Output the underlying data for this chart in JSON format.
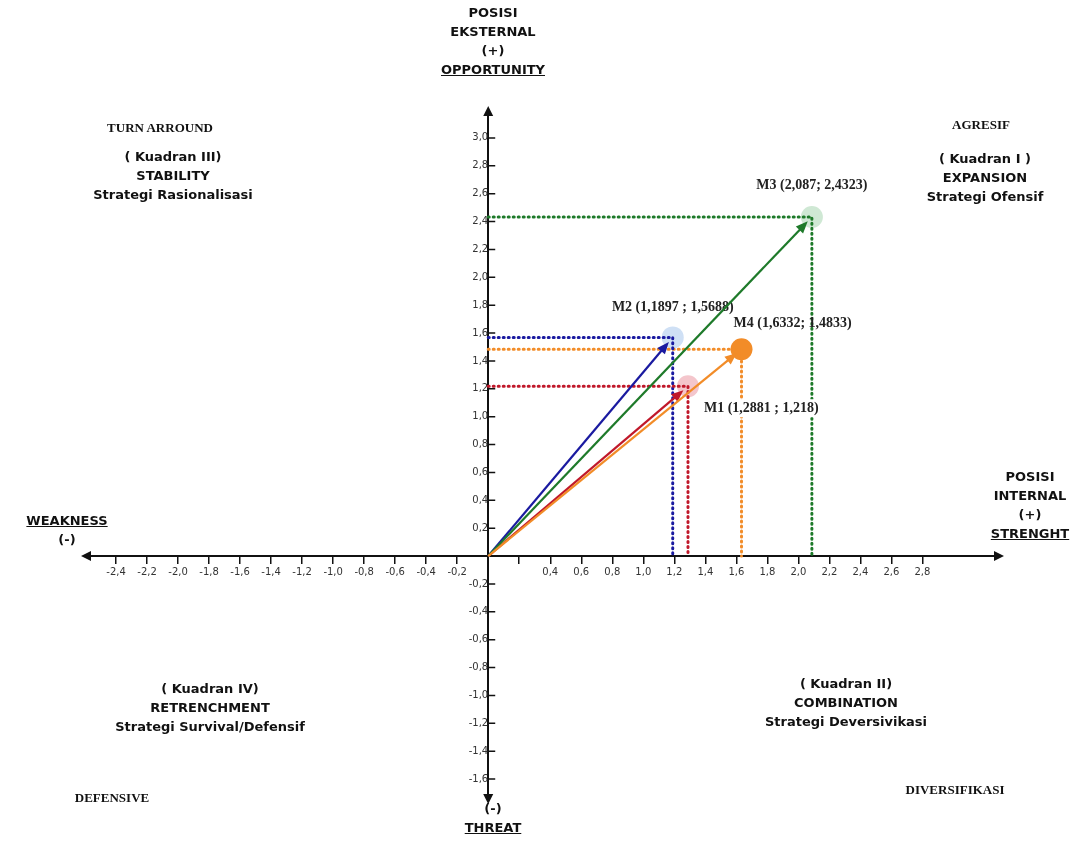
{
  "chart_data": {
    "type": "scatter",
    "xlabel": "POSISI\nINTERNAL\n(+)\nSTRENGHT",
    "ylabel": "POSISI\nEKSTERNAL\n(+)\nOPPORTUNITY",
    "xlim": [
      -2.6,
      3.3
    ],
    "ylim": [
      -1.75,
      3.2
    ],
    "xticks": [
      {
        "value": -2.4,
        "label": "-2,4"
      },
      {
        "value": -2.2,
        "label": "-2,2"
      },
      {
        "value": -2.0,
        "label": "-2,0"
      },
      {
        "value": -1.8,
        "label": "-1,8"
      },
      {
        "value": -1.6,
        "label": "-1,6"
      },
      {
        "value": -1.4,
        "label": "-1,4"
      },
      {
        "value": -1.2,
        "label": "-1,2"
      },
      {
        "value": -1.0,
        "label": "-1,0"
      },
      {
        "value": -0.8,
        "label": "-0,8"
      },
      {
        "value": -0.6,
        "label": "-0,6"
      },
      {
        "value": -0.4,
        "label": "-0,4"
      },
      {
        "value": -0.2,
        "label": "-0,2"
      },
      {
        "value": 0.2,
        "label": null
      },
      {
        "value": 0.4,
        "label": "0,4"
      },
      {
        "value": 0.6,
        "label": "0,6"
      },
      {
        "value": 0.8,
        "label": "0,8"
      },
      {
        "value": 1.0,
        "label": "1,0"
      },
      {
        "value": 1.2,
        "label": "1,2"
      },
      {
        "value": 1.4,
        "label": "1,4"
      },
      {
        "value": 1.6,
        "label": "1,6"
      },
      {
        "value": 1.8,
        "label": "1,8"
      },
      {
        "value": 2.0,
        "label": "2,0"
      },
      {
        "value": 2.2,
        "label": "2,2"
      },
      {
        "value": 2.4,
        "label": "2,4"
      },
      {
        "value": 2.6,
        "label": "2,6"
      },
      {
        "value": 2.8,
        "label": "2,8"
      }
    ],
    "yticks": [
      {
        "value": 3.0,
        "label": "3,0"
      },
      {
        "value": 2.8,
        "label": "2,8"
      },
      {
        "value": 2.6,
        "label": "2,6"
      },
      {
        "value": 2.4,
        "label": "2,4"
      },
      {
        "value": 2.2,
        "label": "2,2"
      },
      {
        "value": 2.0,
        "label": "2,0"
      },
      {
        "value": 1.8,
        "label": "1,8"
      },
      {
        "value": 1.6,
        "label": "1,6"
      },
      {
        "value": 1.4,
        "label": "1,4"
      },
      {
        "value": 1.2,
        "label": "1,2"
      },
      {
        "value": 1.0,
        "label": "1,0"
      },
      {
        "value": 0.8,
        "label": "0,8"
      },
      {
        "value": 0.6,
        "label": "0,6"
      },
      {
        "value": 0.4,
        "label": "0,4"
      },
      {
        "value": 0.2,
        "label": "0,2"
      },
      {
        "value": -0.2,
        "label": "-0,2"
      },
      {
        "value": -0.4,
        "label": "-0,4"
      },
      {
        "value": -0.6,
        "label": "-0,6"
      },
      {
        "value": -0.8,
        "label": "-0,8"
      },
      {
        "value": -1.0,
        "label": "-1,0"
      },
      {
        "value": -1.2,
        "label": "-1,2"
      },
      {
        "value": -1.4,
        "label": "-1,4"
      },
      {
        "value": -1.6,
        "label": "-1,6"
      }
    ],
    "grid": false,
    "marker": "circle",
    "series": [
      {
        "type": "line",
        "line_style": "dotted",
        "marker": "none",
        "color": "#c0182a",
        "x": [
          0,
          1.2881,
          1.2881
        ],
        "values": [
          1.218,
          1.218,
          0
        ]
      },
      {
        "type": "line",
        "line_style": "dotted",
        "marker": "none",
        "color": "#1a1aa0",
        "x": [
          0,
          1.1897,
          1.1897
        ],
        "values": [
          1.5688,
          1.5688,
          0
        ]
      },
      {
        "type": "line",
        "line_style": "dotted",
        "marker": "none",
        "color": "#1e7a2a",
        "x": [
          0,
          2.087,
          2.087
        ],
        "values": [
          2.4323,
          2.4323,
          0
        ]
      },
      {
        "type": "line",
        "line_style": "dotted",
        "marker": "none",
        "color": "#f28c28",
        "x": [
          0,
          1.6332,
          1.6332
        ],
        "values": [
          1.4833,
          1.4833,
          0
        ]
      },
      {
        "name": "M1 (1,2881 ; 1,218)",
        "color": "#f4c6cc",
        "x": [
          1.2881
        ],
        "values": [
          1.218
        ]
      },
      {
        "name": "M2 (1,1897 ; 1,5688)",
        "color": "#cfe0f5",
        "x": [
          1.1897
        ],
        "values": [
          1.5688
        ]
      },
      {
        "name": "M3 (2,087; 2,4323)",
        "color": "#cfe8d4",
        "x": [
          2.087
        ],
        "values": [
          2.4323
        ]
      },
      {
        "name": "M4 (1,6332; 1,4833)",
        "color": "#f28c28",
        "x": [
          1.6332
        ],
        "values": [
          1.4833
        ]
      }
    ],
    "annotations": [
      "WEAKNESS\n(-)",
      "(-)\nTHREAT",
      "TURN ARROUND",
      "( Kuadran III)\nSTABILITY\nStrategi Rasionalisasi",
      "AGRESIF",
      "( Kuadran I )\nEXPANSION\nStrategi Ofensif",
      "( Kuadran IV)\nRETRENCHMENT\nStrategi Survival/Defensif",
      "DEFENSIVE",
      "( Kuadran II)\nCOMBINATION\nStrategi Deversivikasi",
      "DIVERSIFIKASI"
    ]
  }
}
